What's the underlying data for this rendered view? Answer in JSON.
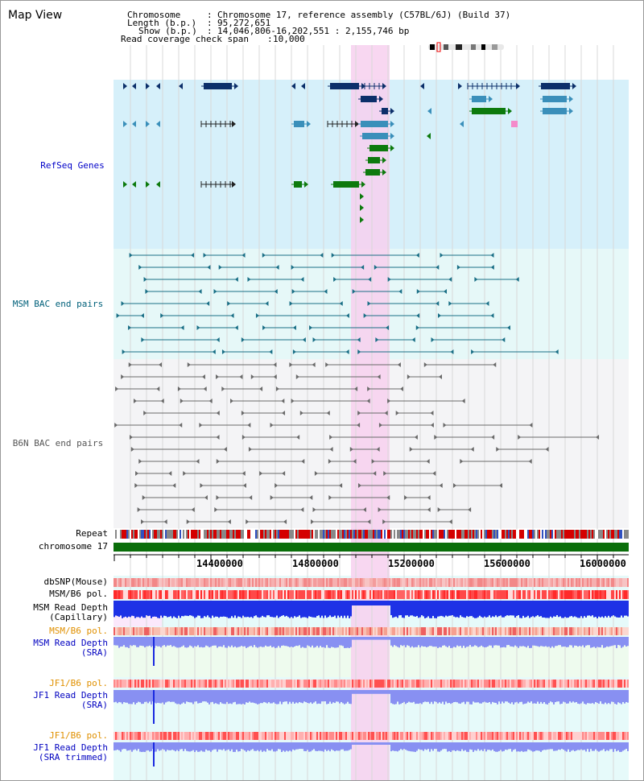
{
  "title": "Map View",
  "header": {
    "chromosome_label": "Chromosome",
    "chromosome_value": "Chromosome 17, reference assembly (C57BL/6J) (Build 37)",
    "length_label": "Length (b.p.)",
    "length_value": "95,272,651",
    "show_label": "Show (b.p.)",
    "show_value": "14,046,806-16,202,551 : 2,155,746 bp",
    "coverage_label": "Read coverage check span",
    "coverage_value": "10,000"
  },
  "tracks": {
    "refseq": "RefSeq Genes",
    "msm_bac": "MSM BAC end pairs",
    "b6n_bac": "B6N BAC end pairs",
    "repeat": "Repeat",
    "chromosome": "chromosome 17",
    "dbsnp": "dbSNP(Mouse)",
    "msm_b6_pol_1": "MSM/B6 pol.",
    "msm_cap_1": "MSM Read Depth",
    "msm_cap_2": "(Capillary)",
    "msm_b6_pol_2": "MSM/B6 pol.",
    "msm_sra_1": "MSM Read Depth",
    "msm_sra_2": "(SRA)",
    "jf1_pol_1": "JF1/B6 pol.",
    "jf1_sra_1": "JF1 Read Depth",
    "jf1_sra_2": "(SRA)",
    "jf1_pol_2": "JF1/B6 pol.",
    "jf1_trim_1": "JF1 Read Depth",
    "jf1_trim_2": "(SRA trimmed)"
  },
  "axis": {
    "ticks": [
      "14400000",
      "14800000",
      "15200000",
      "15600000",
      "16000000"
    ]
  },
  "colors": {
    "refseq_bg": "#d6f0fa",
    "msm_bac_bg": "#e6f8f8",
    "b6n_bg": "#f4f4f6",
    "highlight": "#f7d0ee",
    "refseq_label": "#0000c8",
    "msm_label": "#00607a",
    "b6n_label": "#555555",
    "orange_label": "#e09000",
    "blue_label": "#0000c0"
  }
}
